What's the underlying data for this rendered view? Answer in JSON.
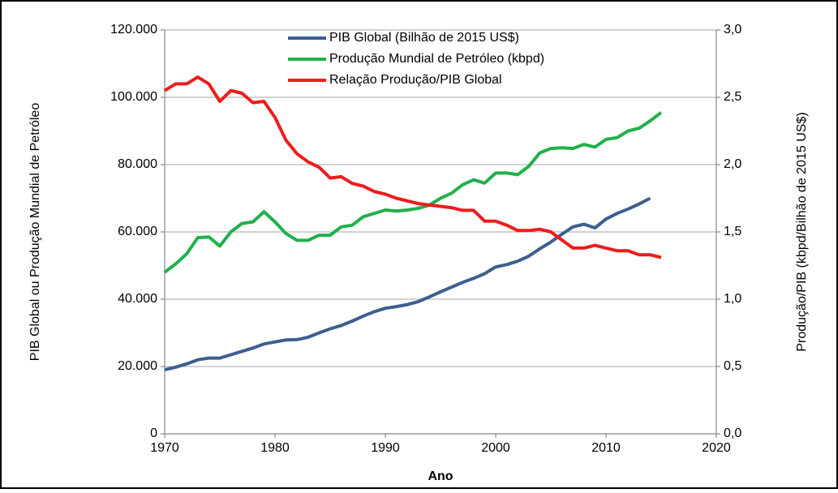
{
  "chart_data": {
    "type": "line",
    "x_label": "Ano",
    "y_label": "PIB Global ou Produção Mundial de Petróleo",
    "y2_label": "Produção/PIB (kbpd/Bilhão de 2015 US$)",
    "x": [
      1970,
      1971,
      1972,
      1973,
      1974,
      1975,
      1976,
      1977,
      1978,
      1979,
      1980,
      1981,
      1982,
      1983,
      1984,
      1985,
      1986,
      1987,
      1988,
      1989,
      1990,
      1991,
      1992,
      1993,
      1994,
      1995,
      1996,
      1997,
      1998,
      1999,
      2000,
      2001,
      2002,
      2003,
      2004,
      2005,
      2006,
      2007,
      2008,
      2009,
      2010,
      2011,
      2012,
      2013,
      2014,
      2015
    ],
    "series": [
      {
        "name": "PIB Global (Bilhão de 2015 US$)",
        "color": "#3d5f8f",
        "values": [
          19000,
          19800,
          20800,
          22000,
          22500,
          22500,
          23500,
          24500,
          25500,
          26700,
          27300,
          27900,
          28000,
          28700,
          30000,
          31200,
          32200,
          33500,
          35000,
          36300,
          37300,
          37800,
          38400,
          39300,
          40700,
          42200,
          43600,
          45000,
          46200,
          47600,
          49600,
          50300,
          51300,
          52800,
          55000,
          57000,
          59300,
          61500,
          62300,
          61200,
          63800,
          65500,
          66800,
          68300,
          70000,
          null
        ]
      },
      {
        "name": "Produção Mundial de Petróleo (kbpd)",
        "color": "#21b04b",
        "values": [
          48000,
          50500,
          53500,
          58300,
          58500,
          55800,
          60000,
          62500,
          63000,
          66000,
          63000,
          59500,
          57500,
          57500,
          59000,
          59000,
          61500,
          62000,
          64500,
          65500,
          66500,
          66200,
          66500,
          67000,
          68000,
          70000,
          71500,
          74000,
          75500,
          74500,
          77500,
          77500,
          77000,
          79500,
          83500,
          84800,
          85000,
          84800,
          86000,
          85200,
          87500,
          88000,
          90000,
          90800,
          93000,
          95500
        ]
      },
      {
        "name": "Relação Produção/PIB Global",
        "color": "#ee1c1c",
        "axis": "y2",
        "values": [
          2.55,
          2.6,
          2.6,
          2.65,
          2.6,
          2.47,
          2.55,
          2.53,
          2.46,
          2.47,
          2.35,
          2.18,
          2.08,
          2.02,
          1.98,
          1.9,
          1.91,
          1.86,
          1.84,
          1.8,
          1.78,
          1.75,
          1.73,
          1.71,
          1.7,
          1.69,
          1.68,
          1.66,
          1.66,
          1.58,
          1.58,
          1.55,
          1.51,
          1.51,
          1.52,
          1.5,
          1.44,
          1.38,
          1.38,
          1.4,
          1.38,
          1.36,
          1.36,
          1.33,
          1.33,
          1.31
        ]
      }
    ],
    "xlim": [
      1970,
      2020
    ],
    "xticks": [
      1970,
      1980,
      1990,
      2000,
      2010,
      2020
    ],
    "ylim": [
      0,
      120000
    ],
    "yticks": [
      0,
      {
        "value": 20000,
        "label": "20.000"
      },
      {
        "value": 40000,
        "label": "40.000"
      },
      {
        "value": 60000,
        "label": "60.000"
      },
      {
        "value": 80000,
        "label": "80.000"
      },
      {
        "value": 100000,
        "label": "100.000"
      },
      {
        "value": 120000,
        "label": "120.000"
      }
    ],
    "y2lim": [
      0,
      3
    ],
    "y2ticks": [
      {
        "value": 0,
        "label": "0,0"
      },
      {
        "value": 0.5,
        "label": "0,5"
      },
      {
        "value": 1,
        "label": "1,0"
      },
      {
        "value": 1.5,
        "label": "1,5"
      },
      {
        "value": 2,
        "label": "2,0"
      },
      {
        "value": 2.5,
        "label": "2,5"
      },
      {
        "value": 3,
        "label": "3,0"
      }
    ],
    "grid": true,
    "legend": "top"
  }
}
